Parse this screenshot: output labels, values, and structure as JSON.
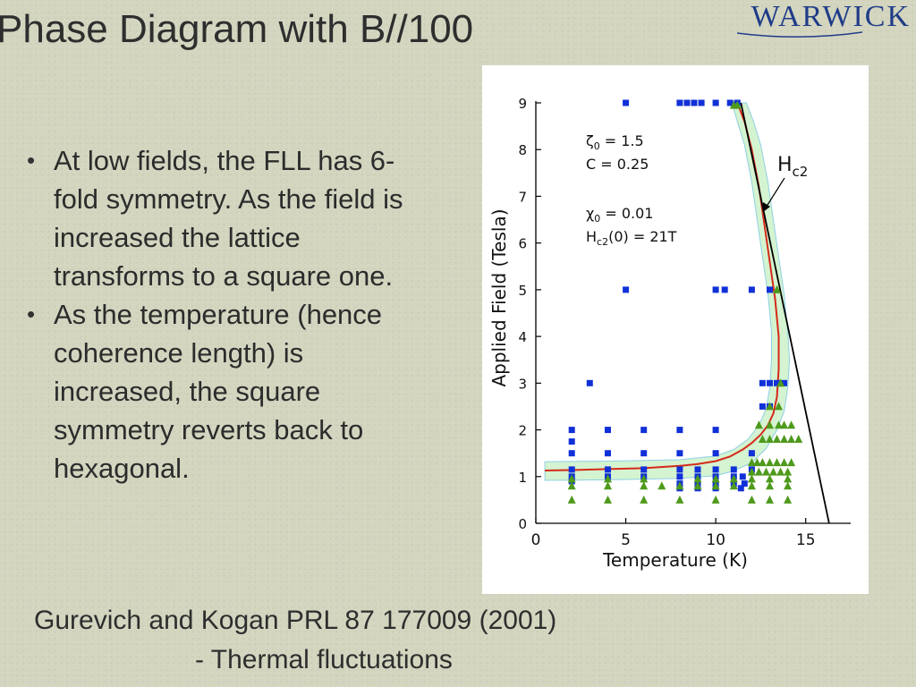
{
  "slide": {
    "title": "Phase Diagram with B//100",
    "logo_text": "WARWICK",
    "bullets": [
      "At low fields, the FLL has 6-fold symmetry.  As the field is increased the lattice transforms to a square one.",
      "As the temperature (hence coherence length) is increased, the square symmetry reverts back to hexagonal."
    ],
    "citation_line1": "Gurevich and Kogan PRL 87 177009 (2001)",
    "citation_line2": "- Thermal fluctuations"
  },
  "chart_data": {
    "type": "scatter",
    "xlabel": "Temperature (K)",
    "ylabel": "Applied Field (Tesla)",
    "xlim": [
      0,
      17.5
    ],
    "ylim": [
      0,
      9
    ],
    "xticks": [
      0,
      5,
      10,
      15
    ],
    "yticks": [
      0,
      1,
      2,
      3,
      4,
      5,
      6,
      7,
      8,
      9
    ],
    "grid": false,
    "annotations": {
      "params": [
        {
          "sym": "ζ",
          "sub": "0",
          "rest": " = 1.5"
        },
        {
          "sym": "C",
          "sub": "",
          "rest": "  = 0.25"
        },
        {
          "sym": "χ",
          "sub": "0",
          "rest": " = 0.01"
        },
        {
          "sym": "H",
          "sub": "c2",
          "rest": "(0) = 21T"
        }
      ],
      "hc2_label": {
        "main": "H",
        "sub": "c2"
      }
    },
    "colors": {
      "square": "#1030d8",
      "triangle": "#4e9a1c",
      "band": "#c6efc0",
      "band_edge": "#8fd0e6",
      "fit": "#d42a1a",
      "hc2": "#000000"
    },
    "series": [
      {
        "marker": "square",
        "points": [
          [
            5,
            9
          ],
          [
            8,
            9
          ],
          [
            8.4,
            9
          ],
          [
            8.8,
            9
          ],
          [
            9.2,
            9
          ],
          [
            10,
            9
          ],
          [
            10.8,
            9
          ],
          [
            11.2,
            9
          ],
          [
            5,
            5
          ],
          [
            10,
            5
          ],
          [
            10.5,
            5
          ],
          [
            12,
            5
          ],
          [
            13,
            5
          ],
          [
            3,
            3
          ],
          [
            12.6,
            3
          ],
          [
            13,
            3
          ],
          [
            13.4,
            3
          ],
          [
            13.8,
            3
          ],
          [
            12.6,
            2.5
          ],
          [
            13,
            2.5
          ],
          [
            2,
            2
          ],
          [
            4,
            2
          ],
          [
            6,
            2
          ],
          [
            8,
            2
          ],
          [
            10,
            2
          ],
          [
            2,
            1.75
          ],
          [
            2,
            1.5
          ],
          [
            4,
            1.5
          ],
          [
            6,
            1.5
          ],
          [
            8,
            1.5
          ],
          [
            10,
            1.5
          ],
          [
            12,
            1.5
          ],
          [
            2,
            1.15
          ],
          [
            4,
            1.15
          ],
          [
            6,
            1.15
          ],
          [
            8,
            1.15
          ],
          [
            9,
            1.15
          ],
          [
            10,
            1.15
          ],
          [
            11,
            1.15
          ],
          [
            12,
            1.15
          ],
          [
            2,
            1.0
          ],
          [
            4,
            1.0
          ],
          [
            6,
            1.0
          ],
          [
            8,
            1.0
          ],
          [
            9,
            1.0
          ],
          [
            10,
            1.0
          ],
          [
            11,
            1.0
          ],
          [
            11.5,
            1.0
          ],
          [
            2,
            0.9
          ],
          [
            8,
            0.85
          ],
          [
            9,
            0.85
          ],
          [
            10,
            0.85
          ],
          [
            11,
            0.85
          ],
          [
            11.6,
            0.85
          ],
          [
            8,
            0.75
          ],
          [
            9,
            0.75
          ],
          [
            10,
            0.75
          ],
          [
            11.4,
            0.75
          ]
        ]
      },
      {
        "marker": "triangle",
        "points": [
          [
            11,
            8.95
          ],
          [
            11.2,
            8.95
          ],
          [
            13.4,
            5
          ],
          [
            13.6,
            3
          ],
          [
            13,
            2.5
          ],
          [
            13.5,
            2.5
          ],
          [
            12.4,
            2.1
          ],
          [
            13,
            2.1
          ],
          [
            13.5,
            2.1
          ],
          [
            13.8,
            2.1
          ],
          [
            14.2,
            2.1
          ],
          [
            12.6,
            1.8
          ],
          [
            13,
            1.8
          ],
          [
            13.4,
            1.8
          ],
          [
            13.8,
            1.8
          ],
          [
            14.2,
            1.8
          ],
          [
            14.6,
            1.8
          ],
          [
            12,
            1.3
          ],
          [
            12.3,
            1.3
          ],
          [
            12.6,
            1.3
          ],
          [
            13,
            1.3
          ],
          [
            13.4,
            1.3
          ],
          [
            13.8,
            1.3
          ],
          [
            14.2,
            1.3
          ],
          [
            12,
            1.1
          ],
          [
            12.4,
            1.1
          ],
          [
            12.8,
            1.1
          ],
          [
            13.2,
            1.1
          ],
          [
            13.6,
            1.1
          ],
          [
            14,
            1.1
          ],
          [
            2,
            0.95
          ],
          [
            4,
            0.95
          ],
          [
            6,
            0.95
          ],
          [
            9,
            0.95
          ],
          [
            10,
            0.95
          ],
          [
            11,
            0.95
          ],
          [
            12,
            0.95
          ],
          [
            13,
            0.95
          ],
          [
            14,
            0.95
          ],
          [
            2,
            0.8
          ],
          [
            4,
            0.8
          ],
          [
            6,
            0.8
          ],
          [
            7,
            0.8
          ],
          [
            8,
            0.8
          ],
          [
            9,
            0.8
          ],
          [
            10,
            0.8
          ],
          [
            11,
            0.8
          ],
          [
            12,
            0.8
          ],
          [
            13,
            0.8
          ],
          [
            14,
            0.8
          ],
          [
            2,
            0.5
          ],
          [
            4,
            0.5
          ],
          [
            6,
            0.5
          ],
          [
            8,
            0.5
          ],
          [
            10,
            0.5
          ],
          [
            12,
            0.5
          ],
          [
            13,
            0.5
          ],
          [
            14,
            0.5
          ]
        ]
      }
    ],
    "fit_curve": [
      [
        0.5,
        1.13
      ],
      [
        2,
        1.14
      ],
      [
        4,
        1.16
      ],
      [
        6,
        1.18
      ],
      [
        8,
        1.23
      ],
      [
        9,
        1.27
      ],
      [
        10,
        1.33
      ],
      [
        10.8,
        1.43
      ],
      [
        11.5,
        1.58
      ],
      [
        12,
        1.72
      ],
      [
        12.5,
        1.9
      ],
      [
        12.9,
        2.1
      ],
      [
        13.2,
        2.35
      ],
      [
        13.4,
        2.7
      ],
      [
        13.5,
        3.3
      ],
      [
        13.5,
        4.0
      ],
      [
        13.3,
        4.8
      ],
      [
        13.0,
        5.6
      ],
      [
        12.7,
        6.4
      ],
      [
        12.4,
        7.2
      ],
      [
        12.0,
        8.0
      ],
      [
        11.6,
        8.6
      ],
      [
        11.2,
        9.0
      ]
    ],
    "band": {
      "upper": [
        [
          0.5,
          1.32
        ],
        [
          4,
          1.33
        ],
        [
          8,
          1.36
        ],
        [
          10,
          1.44
        ],
        [
          11,
          1.58
        ],
        [
          11.8,
          1.8
        ],
        [
          12.4,
          2.1
        ],
        [
          12.8,
          2.45
        ],
        [
          13.0,
          2.9
        ],
        [
          13.1,
          3.5
        ],
        [
          13.1,
          4.1
        ],
        [
          12.9,
          4.9
        ],
        [
          12.6,
          5.7
        ],
        [
          12.3,
          6.5
        ],
        [
          12.0,
          7.3
        ],
        [
          11.6,
          8.1
        ],
        [
          11.2,
          8.6
        ],
        [
          10.9,
          9.0
        ]
      ],
      "lower": [
        [
          14.0,
          2.9
        ],
        [
          14.1,
          3.5
        ],
        [
          14.0,
          4.1
        ],
        [
          13.8,
          4.9
        ],
        [
          13.5,
          5.7
        ],
        [
          13.2,
          6.5
        ],
        [
          12.9,
          7.3
        ],
        [
          12.5,
          8.1
        ],
        [
          12.1,
          8.6
        ],
        [
          11.7,
          9.0
        ]
      ],
      "lower_low": [
        [
          0.5,
          0.92
        ],
        [
          4,
          0.93
        ],
        [
          8,
          0.96
        ],
        [
          10,
          1.02
        ],
        [
          11,
          1.12
        ],
        [
          12,
          1.3
        ],
        [
          12.8,
          1.6
        ],
        [
          13.4,
          2.0
        ],
        [
          13.8,
          2.4
        ],
        [
          14.0,
          2.9
        ]
      ]
    },
    "hc2_line": [
      [
        11.4,
        9.0
      ],
      [
        16.3,
        0
      ]
    ]
  }
}
